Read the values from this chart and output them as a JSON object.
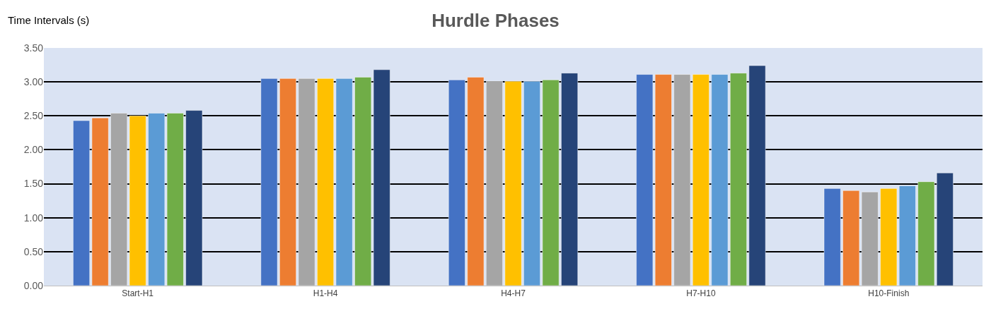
{
  "chart_data": {
    "type": "bar",
    "title": "Hurdle Phases",
    "ylabel": "Time Intervals (s)",
    "categories": [
      "Start-H1",
      "H1-H4",
      "H4-H7",
      "H7-H10",
      "H10-Finish"
    ],
    "series": [
      {
        "color": "#4472c4",
        "values": [
          2.43,
          3.05,
          3.03,
          3.11,
          1.43
        ]
      },
      {
        "color": "#ed7d31",
        "values": [
          2.47,
          3.05,
          3.07,
          3.11,
          1.4
        ]
      },
      {
        "color": "#a5a5a5",
        "values": [
          2.54,
          3.05,
          3.01,
          3.11,
          1.38
        ]
      },
      {
        "color": "#ffc000",
        "values": [
          2.5,
          3.05,
          3.01,
          3.11,
          1.43
        ]
      },
      {
        "color": "#5b9bd5",
        "values": [
          2.54,
          3.05,
          3.01,
          3.11,
          1.47
        ]
      },
      {
        "color": "#70ad47",
        "values": [
          2.54,
          3.07,
          3.03,
          3.13,
          1.53
        ]
      },
      {
        "color": "#264478",
        "values": [
          2.58,
          3.18,
          3.13,
          3.24,
          1.66
        ]
      }
    ],
    "ylim": [
      0,
      3.5
    ],
    "yticks": [
      {
        "value": 0,
        "label": "0.00"
      },
      {
        "value": 0.5,
        "label": "0.50"
      },
      {
        "value": 1,
        "label": "1.00"
      },
      {
        "value": 1.5,
        "label": "1.50"
      },
      {
        "value": 2,
        "label": "2.00"
      },
      {
        "value": 2.5,
        "label": "2.50"
      },
      {
        "value": 3,
        "label": "3.00"
      },
      {
        "value": 3.5,
        "label": "3.50"
      }
    ],
    "grid": "y",
    "legend": false
  }
}
